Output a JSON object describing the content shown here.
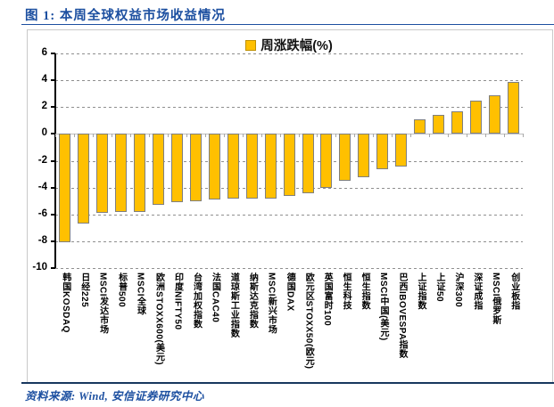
{
  "figure": {
    "title": "图 1: 本周全球权益市场收益情况",
    "source": "资料来源: Wind, 安信证券研究中心"
  },
  "legend": {
    "label": "周涨跌幅(%)",
    "swatch_color": "#FFC000"
  },
  "colors": {
    "bar_fill": "#FFC000",
    "bar_border": "#7F7F7F",
    "title_blue": "#1C4FA0",
    "bottom_rule_navy": "#17375E",
    "gridline_gray": "#8f8f8f"
  },
  "chart_data": {
    "type": "bar",
    "title": "周涨跌幅(%)",
    "legend_position": "top-center",
    "grid": "horizontal-dashed",
    "ylim": [
      -10,
      6
    ],
    "yticks": [
      6,
      4,
      2,
      0,
      -2,
      -4,
      -6,
      -8,
      -10
    ],
    "ylabel": "",
    "xlabel": "",
    "categories": [
      "韩国KOSDAQ",
      "日经225",
      "MSCI发达市场",
      "标普500",
      "MSCI全球",
      "欧洲STOXX600(美元)",
      "印度NIFTY50",
      "台湾加权指数",
      "法国CAC40",
      "道琼斯工业指数",
      "纳斯达克指数",
      "MSCI新兴市场",
      "德国DAX",
      "欧元区STOXX50(欧元)",
      "英国富时100",
      "恒生科技",
      "恒生指数",
      "MSCI中国(美元)",
      "巴西IBOVESPA指数",
      "上证指数",
      "上证50",
      "沪深300",
      "深证成指",
      "MSCI俄罗斯",
      "创业板指"
    ],
    "values": [
      -8.1,
      -6.7,
      -5.9,
      -5.8,
      -5.8,
      -5.3,
      -5.1,
      -5.0,
      -4.9,
      -4.8,
      -4.8,
      -4.8,
      -4.6,
      -4.4,
      -4.0,
      -3.5,
      -3.2,
      -2.6,
      -2.4,
      1.1,
      1.4,
      1.7,
      2.5,
      2.9,
      3.9
    ],
    "series_name": "周涨跌幅(%)",
    "unit": "%"
  }
}
